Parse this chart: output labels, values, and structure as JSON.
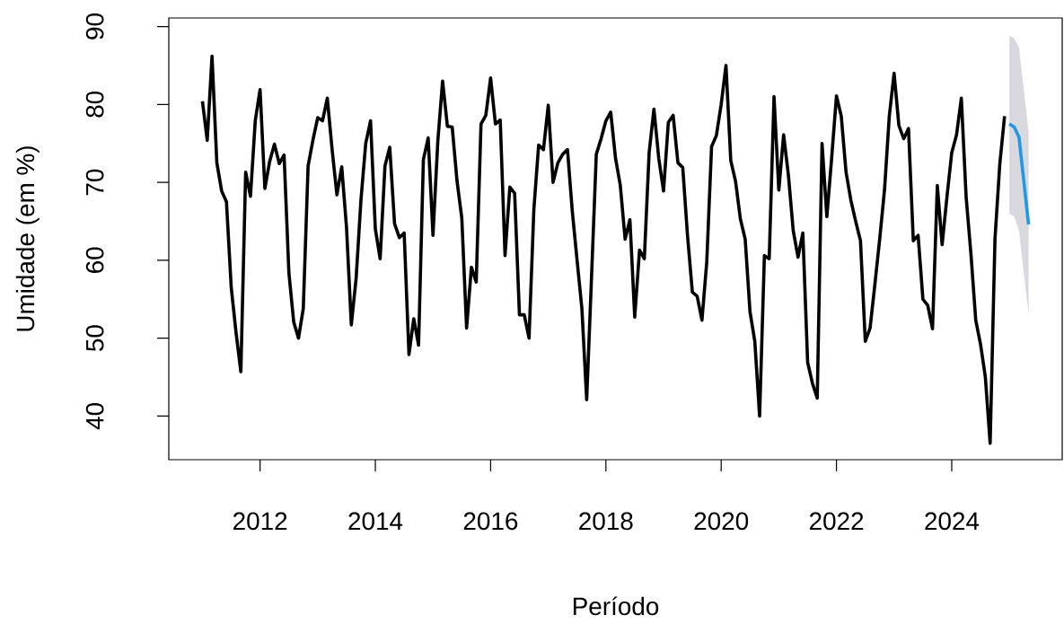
{
  "chart_data": {
    "type": "line",
    "xlabel": "Período",
    "ylabel": "Umidade (em %)",
    "xlim": [
      "2010-06",
      "2025-12"
    ],
    "ylim": [
      34.4,
      91.1
    ],
    "xticks": [
      "2012",
      "2014",
      "2016",
      "2018",
      "2020",
      "2022",
      "2024"
    ],
    "yticks": [
      40,
      50,
      60,
      70,
      80,
      90
    ],
    "series": [
      {
        "color": "#000000",
        "x": [
          "2011-01",
          "2011-02",
          "2011-03",
          "2011-04",
          "2011-05",
          "2011-06",
          "2011-07",
          "2011-08",
          "2011-09",
          "2011-10",
          "2011-11",
          "2011-12",
          "2012-01",
          "2012-02",
          "2012-03",
          "2012-04",
          "2012-05",
          "2012-06",
          "2012-07",
          "2012-08",
          "2012-09",
          "2012-10",
          "2012-11",
          "2012-12",
          "2013-01",
          "2013-02",
          "2013-03",
          "2013-04",
          "2013-05",
          "2013-06",
          "2013-07",
          "2013-08",
          "2013-09",
          "2013-10",
          "2013-11",
          "2013-12",
          "2014-01",
          "2014-02",
          "2014-03",
          "2014-04",
          "2014-05",
          "2014-06",
          "2014-07",
          "2014-08",
          "2014-09",
          "2014-10",
          "2014-11",
          "2014-12",
          "2015-01",
          "2015-02",
          "2015-03",
          "2015-04",
          "2015-05",
          "2015-06",
          "2015-07",
          "2015-08",
          "2015-09",
          "2015-10",
          "2015-11",
          "2015-12",
          "2016-01",
          "2016-02",
          "2016-03",
          "2016-04",
          "2016-05",
          "2016-06",
          "2016-07",
          "2016-08",
          "2016-09",
          "2016-10",
          "2016-11",
          "2016-12",
          "2017-01",
          "2017-02",
          "2017-03",
          "2017-04",
          "2017-05",
          "2017-06",
          "2017-07",
          "2017-08",
          "2017-09",
          "2017-10",
          "2017-11",
          "2017-12",
          "2018-01",
          "2018-02",
          "2018-03",
          "2018-04",
          "2018-05",
          "2018-06",
          "2018-07",
          "2018-08",
          "2018-09",
          "2018-10",
          "2018-11",
          "2018-12",
          "2019-01",
          "2019-02",
          "2019-03",
          "2019-04",
          "2019-05",
          "2019-06",
          "2019-07",
          "2019-08",
          "2019-09",
          "2019-10",
          "2019-11",
          "2019-12",
          "2020-01",
          "2020-02",
          "2020-03",
          "2020-04",
          "2020-05",
          "2020-06",
          "2020-07",
          "2020-08",
          "2020-09",
          "2020-10",
          "2020-11",
          "2020-12",
          "2021-01",
          "2021-02",
          "2021-03",
          "2021-04",
          "2021-05",
          "2021-06",
          "2021-07",
          "2021-08",
          "2021-09",
          "2021-10",
          "2021-11",
          "2021-12",
          "2022-01",
          "2022-02",
          "2022-03",
          "2022-04",
          "2022-05",
          "2022-06",
          "2022-07",
          "2022-08",
          "2022-09",
          "2022-10",
          "2022-11",
          "2022-12",
          "2023-01",
          "2023-02",
          "2023-03",
          "2023-04",
          "2023-05",
          "2023-06",
          "2023-07",
          "2023-08",
          "2023-09",
          "2023-10",
          "2023-11",
          "2023-12",
          "2024-01",
          "2024-02",
          "2024-03",
          "2024-04",
          "2024-05",
          "2024-06",
          "2024-07",
          "2024-08",
          "2024-09",
          "2024-10",
          "2024-11",
          "2024-12"
        ],
        "values": [
          80.4,
          75.4,
          86.2,
          72.5,
          68.9,
          67.5,
          56.5,
          50.7,
          45.7,
          71.3,
          68.2,
          77.9,
          81.9,
          69.2,
          72.7,
          74.9,
          72.4,
          73.5,
          58.4,
          52.1,
          50.0,
          53.8,
          72.1,
          75.4,
          78.3,
          77.9,
          80.8,
          74.2,
          68.4,
          72.0,
          64.2,
          51.7,
          57.7,
          67.7,
          75.0,
          77.9,
          64.0,
          60.2,
          72.1,
          74.5,
          64.7,
          62.9,
          63.5,
          47.9,
          52.5,
          49.1,
          72.9,
          75.7,
          63.2,
          75.2,
          83.0,
          77.2,
          77.1,
          70.2,
          65.4,
          51.3,
          59.1,
          57.2,
          77.5,
          78.6,
          83.4,
          77.5,
          78.0,
          60.6,
          69.4,
          68.6,
          53.0,
          53.0,
          50.0,
          66.5,
          74.8,
          74.2,
          79.9,
          70.0,
          72.5,
          73.6,
          74.2,
          66.3,
          60.0,
          53.8,
          42.1,
          57.7,
          73.6,
          75.6,
          77.9,
          79.0,
          73.1,
          69.6,
          62.7,
          65.2,
          52.7,
          61.3,
          60.2,
          73.8,
          79.4,
          73.1,
          68.9,
          77.7,
          78.6,
          72.5,
          71.9,
          63.1,
          55.9,
          55.4,
          52.3,
          59.8,
          74.6,
          76.0,
          80.0,
          85.0,
          72.8,
          70.1,
          65.3,
          62.7,
          53.4,
          49.6,
          40.0,
          60.6,
          60.2,
          81.0,
          69.0,
          76.1,
          70.9,
          63.8,
          60.4,
          63.5,
          46.9,
          44.2,
          42.3,
          75.0,
          65.6,
          73.1,
          81.1,
          78.5,
          71.3,
          67.7,
          65.0,
          62.5,
          49.6,
          51.3,
          56.9,
          62.7,
          69.0,
          78.5,
          84.0,
          77.3,
          75.6,
          76.9,
          62.5,
          63.2,
          55.0,
          54.2,
          51.2,
          69.6,
          62.0,
          68.1,
          73.8,
          76.1,
          80.8,
          68.1,
          60.8,
          52.3,
          49.2,
          45.0,
          36.5,
          62.7,
          72.3,
          78.5
        ]
      },
      {
        "color": "#2297e6",
        "x": [
          "2025-01",
          "2025-02",
          "2025-03",
          "2025-04",
          "2025-05"
        ],
        "values": [
          77.5,
          77.1,
          75.8,
          70.2,
          64.6
        ],
        "lower": [
          66.0,
          65.6,
          63.8,
          58.4,
          53.0
        ],
        "upper": [
          88.8,
          88.5,
          87.3,
          81.9,
          76.5
        ]
      }
    ]
  }
}
